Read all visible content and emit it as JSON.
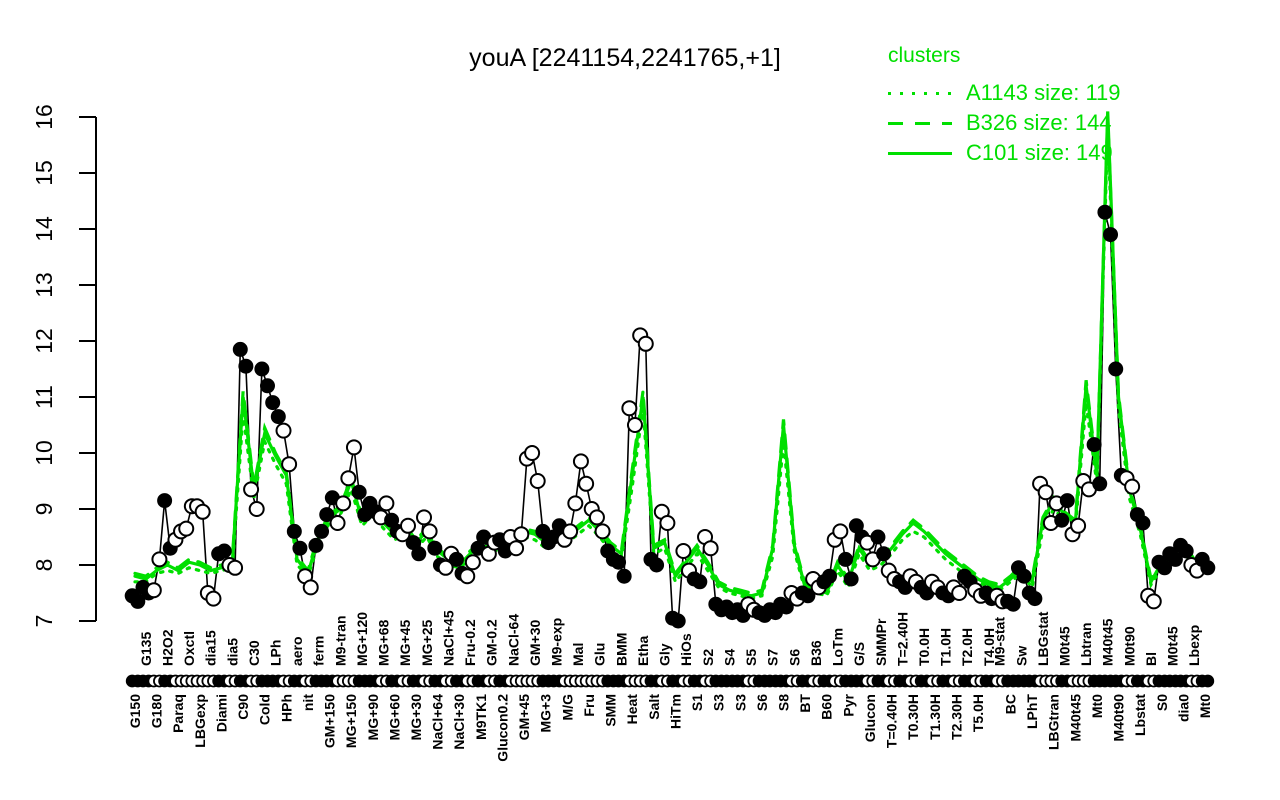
{
  "chart_data": {
    "type": "line",
    "title": "youA [2241154,2241765,+1]",
    "xlabel": "",
    "ylabel": "",
    "ylim": [
      7,
      16
    ],
    "y_ticks": [
      7,
      8,
      9,
      10,
      11,
      12,
      13,
      14,
      15,
      16
    ],
    "grid": false,
    "color": "#00DF00",
    "gene_color": "#000000",
    "legend": {
      "title": "clusters",
      "position": "top-right"
    },
    "conditions": [
      [
        "G150",
        "b",
        "f"
      ],
      [
        "G135",
        "t",
        "f"
      ],
      [
        "G180",
        "b",
        "o"
      ],
      [
        "H2O2",
        "t",
        "f"
      ],
      [
        "Paraq",
        "b",
        "o"
      ],
      [
        "Oxctl",
        "t",
        "o"
      ],
      [
        "LBGexp",
        "b",
        "o"
      ],
      [
        "dia15",
        "t",
        "o"
      ],
      [
        "Diami",
        "b",
        "f"
      ],
      [
        "dia5",
        "t",
        "o"
      ],
      [
        "C90",
        "b",
        "f"
      ],
      [
        "C30",
        "t",
        "o"
      ],
      [
        "Cold",
        "b",
        "f"
      ],
      [
        "LPh",
        "t",
        "f"
      ],
      [
        "HPh",
        "b",
        "o"
      ],
      [
        "aero",
        "t",
        "f"
      ],
      [
        "nit",
        "b",
        "o"
      ],
      [
        "ferm",
        "t",
        "f"
      ],
      [
        "GM+150",
        "b",
        "f"
      ],
      [
        "M9-tran",
        "t",
        "o"
      ],
      [
        "MG+150",
        "b",
        "o"
      ],
      [
        "MG+120",
        "t",
        "f"
      ],
      [
        "MG+90",
        "b",
        "f"
      ],
      [
        "MG+68",
        "t",
        "o"
      ],
      [
        "MG+60",
        "b",
        "f"
      ],
      [
        "MG+45",
        "t",
        "o"
      ],
      [
        "MG+30",
        "b",
        "f"
      ],
      [
        "MG+25",
        "t",
        "o"
      ],
      [
        "NaCl+64",
        "b",
        "f"
      ],
      [
        "NaCl+45",
        "t",
        "o"
      ],
      [
        "NaCl+30",
        "b",
        "f"
      ],
      [
        "Fru-0.2",
        "t",
        "o"
      ],
      [
        "M9TK1",
        "b",
        "f"
      ],
      [
        "GM-0.2",
        "t",
        "o"
      ],
      [
        "Glucon0.2",
        "b",
        "f"
      ],
      [
        "NaCl-64",
        "t",
        "o"
      ],
      [
        "GM+45",
        "b",
        "o"
      ],
      [
        "GM+30",
        "t",
        "o"
      ],
      [
        "MG+3",
        "b",
        "f"
      ],
      [
        "M9-exp",
        "t",
        "f"
      ],
      [
        "M/G",
        "b",
        "o"
      ],
      [
        "Mal",
        "t",
        "o"
      ],
      [
        "Fru",
        "b",
        "o"
      ],
      [
        "Glu",
        "t",
        "o"
      ],
      [
        "SMM",
        "b",
        "f"
      ],
      [
        "BMM",
        "t",
        "f"
      ],
      [
        "Heat",
        "b",
        "o"
      ],
      [
        "Etha",
        "t",
        "o"
      ],
      [
        "Salt",
        "b",
        "f"
      ],
      [
        "Gly",
        "t",
        "o"
      ],
      [
        "HiTm",
        "b",
        "f"
      ],
      [
        "HiOs",
        "t",
        "o"
      ],
      [
        "S1",
        "b",
        "f"
      ],
      [
        "S2",
        "t",
        "o"
      ],
      [
        "S3",
        "b",
        "f"
      ],
      [
        "S4",
        "t",
        "f"
      ],
      [
        "S3",
        "b",
        "f"
      ],
      [
        "S5",
        "t",
        "o"
      ],
      [
        "S6",
        "b",
        "f"
      ],
      [
        "S7",
        "t",
        "f"
      ],
      [
        "S8",
        "b",
        "f"
      ],
      [
        "S6",
        "t",
        "o"
      ],
      [
        "BT",
        "b",
        "f"
      ],
      [
        "B36",
        "t",
        "o"
      ],
      [
        "B60",
        "b",
        "f"
      ],
      [
        "LoTm",
        "t",
        "o"
      ],
      [
        "Pyr",
        "b",
        "f"
      ],
      [
        "G/S",
        "t",
        "f"
      ],
      [
        "Glucon",
        "b",
        "o"
      ],
      [
        "SMMPr",
        "t",
        "f"
      ],
      [
        "T=0.40H",
        "b",
        "o"
      ],
      [
        "T=2.40H",
        "t",
        "f"
      ],
      [
        "T0.30H",
        "b",
        "o"
      ],
      [
        "T0.0H",
        "t",
        "f"
      ],
      [
        "T1.30H",
        "b",
        "o"
      ],
      [
        "T1.0H",
        "t",
        "f"
      ],
      [
        "T2.30H",
        "b",
        "o"
      ],
      [
        "T2.0H",
        "t",
        "f"
      ],
      [
        "T5.0H",
        "b",
        "o"
      ],
      [
        "T4.0H",
        "t",
        "f"
      ],
      [
        "M9-stat",
        "t",
        "o"
      ],
      [
        "BC",
        "b",
        "f"
      ],
      [
        "Sw",
        "t",
        "f"
      ],
      [
        "LPhT",
        "b",
        "f"
      ],
      [
        "LBGstat",
        "t",
        "o"
      ],
      [
        "LBGtran",
        "b",
        "o"
      ],
      [
        "M0t45",
        "t",
        "f"
      ],
      [
        "M40t45",
        "b",
        "o"
      ],
      [
        "Lbtran",
        "t",
        "o"
      ],
      [
        "Mt0",
        "b",
        "f"
      ],
      [
        "M40t45",
        "t",
        "f"
      ],
      [
        "M40t90",
        "b",
        "f"
      ],
      [
        "M0t90",
        "t",
        "o"
      ],
      [
        "Lbstat",
        "b",
        "f"
      ],
      [
        "Bl",
        "t",
        "o"
      ],
      [
        "S0",
        "b",
        "f"
      ],
      [
        "M0t45",
        "t",
        "f"
      ],
      [
        "dia0",
        "b",
        "f"
      ],
      [
        "Lbexp",
        "t",
        "o"
      ],
      [
        "Mt0",
        "b",
        "f"
      ]
    ],
    "gene_values": [
      [
        7.45,
        7.35
      ],
      [
        7.6,
        7.5
      ],
      [
        7.55,
        8.1
      ],
      [
        9.15,
        8.3
      ],
      [
        8.45,
        8.6
      ],
      [
        8.65,
        9.05
      ],
      [
        9.05,
        8.95
      ],
      [
        7.5,
        7.4
      ],
      [
        8.2,
        8.25
      ],
      [
        8.0,
        7.95
      ],
      [
        11.85,
        11.55
      ],
      [
        9.35,
        9.0
      ],
      [
        11.5,
        11.2
      ],
      [
        10.9,
        10.65
      ],
      [
        10.4,
        9.8
      ],
      [
        8.6,
        8.3
      ],
      [
        7.8,
        7.6
      ],
      [
        8.35,
        8.6
      ],
      [
        8.9,
        9.2
      ],
      [
        8.75,
        9.1
      ],
      [
        9.55,
        10.1
      ],
      [
        9.3,
        8.9
      ],
      [
        9.1,
        8.95
      ],
      [
        8.85,
        9.1
      ],
      [
        8.8,
        8.6
      ],
      [
        8.55,
        8.7
      ],
      [
        8.4,
        8.2
      ],
      [
        8.85,
        8.6
      ],
      [
        8.3,
        8.0
      ],
      [
        7.95,
        8.2
      ],
      [
        8.1,
        7.85
      ],
      [
        7.8,
        8.05
      ],
      [
        8.3,
        8.5
      ],
      [
        8.2,
        8.4
      ],
      [
        8.45,
        8.25
      ],
      [
        8.5,
        8.3
      ],
      [
        8.55,
        9.9
      ],
      [
        10.0,
        9.5
      ],
      [
        8.6,
        8.4
      ],
      [
        8.5,
        8.7
      ],
      [
        8.45,
        8.6
      ],
      [
        9.1,
        9.85
      ],
      [
        9.45,
        9.0
      ],
      [
        8.85,
        8.6
      ],
      [
        8.25,
        8.1
      ],
      [
        8.05,
        7.8
      ],
      [
        10.8,
        10.5
      ],
      [
        12.1,
        11.95
      ],
      [
        8.1,
        8.0
      ],
      [
        8.95,
        8.75
      ],
      [
        7.05,
        7.0
      ],
      [
        8.25,
        7.9
      ],
      [
        7.75,
        7.7
      ],
      [
        8.5,
        8.3
      ],
      [
        7.3,
        7.2
      ],
      [
        7.25,
        7.15
      ],
      [
        7.2,
        7.1
      ],
      [
        7.3,
        7.2
      ],
      [
        7.15,
        7.1
      ],
      [
        7.2,
        7.15
      ],
      [
        7.3,
        7.25
      ],
      [
        7.5,
        7.4
      ],
      [
        7.5,
        7.45
      ],
      [
        7.75,
        7.6
      ],
      [
        7.7,
        7.8
      ],
      [
        8.45,
        8.6
      ],
      [
        8.1,
        7.75
      ],
      [
        8.7,
        8.5
      ],
      [
        8.4,
        8.1
      ],
      [
        8.5,
        8.2
      ],
      [
        7.9,
        7.75
      ],
      [
        7.7,
        7.6
      ],
      [
        7.8,
        7.7
      ],
      [
        7.6,
        7.5
      ],
      [
        7.7,
        7.6
      ],
      [
        7.5,
        7.45
      ],
      [
        7.6,
        7.5
      ],
      [
        7.8,
        7.7
      ],
      [
        7.55,
        7.45
      ],
      [
        7.5,
        7.4
      ],
      [
        7.45,
        7.35
      ],
      [
        7.35,
        7.3
      ],
      [
        7.95,
        7.8
      ],
      [
        7.5,
        7.4
      ],
      [
        9.45,
        9.3
      ],
      [
        8.75,
        9.1
      ],
      [
        8.8,
        9.15
      ],
      [
        8.55,
        8.7
      ],
      [
        9.5,
        9.35
      ],
      [
        10.15,
        9.45
      ],
      [
        14.3,
        13.9
      ],
      [
        11.5,
        9.6
      ],
      [
        9.55,
        9.4
      ],
      [
        8.9,
        8.75
      ],
      [
        7.45,
        7.35
      ],
      [
        8.05,
        7.95
      ],
      [
        8.2,
        8.1
      ],
      [
        8.35,
        8.25
      ],
      [
        8.0,
        7.9
      ],
      [
        8.1,
        7.95
      ]
    ],
    "clusters": [
      {
        "name": "A1143 size: 119",
        "style": "dotted",
        "values": [
          7.7,
          7.7,
          7.85,
          7.9,
          7.85,
          7.95,
          7.9,
          7.85,
          7.9,
          7.95,
          10.7,
          9.2,
          10.2,
          9.8,
          9.45,
          8.0,
          7.8,
          8.4,
          8.75,
          8.9,
          9.35,
          8.7,
          8.9,
          8.65,
          8.45,
          8.55,
          8.3,
          8.5,
          8.15,
          8.0,
          7.95,
          8.1,
          8.25,
          8.2,
          8.35,
          8.3,
          8.5,
          8.45,
          8.3,
          8.45,
          8.4,
          8.55,
          8.7,
          8.5,
          8.25,
          8.1,
          9.4,
          10.8,
          8.2,
          8.3,
          7.7,
          7.95,
          8.2,
          7.9,
          7.6,
          7.5,
          7.45,
          7.4,
          7.45,
          8.15,
          10.2,
          8.25,
          7.55,
          7.5,
          7.45,
          7.9,
          7.6,
          8.2,
          7.9,
          8.0,
          8.2,
          8.45,
          8.6,
          8.5,
          8.3,
          8.1,
          7.95,
          7.8,
          7.7,
          7.6,
          7.55,
          7.7,
          7.85,
          7.6,
          8.65,
          9.0,
          8.8,
          8.65,
          10.9,
          9.45,
          15.8,
          10.8,
          9.2,
          8.55,
          7.65,
          7.95,
          8.1,
          8.25,
          7.95,
          7.85
        ]
      },
      {
        "name": "B326 size: 144",
        "style": "dashed",
        "values": [
          7.85,
          7.8,
          7.95,
          8.05,
          7.95,
          8.1,
          8.05,
          7.95,
          8.0,
          8.1,
          11.1,
          9.4,
          10.45,
          10.0,
          9.65,
          8.15,
          7.9,
          8.55,
          8.9,
          9.05,
          9.55,
          8.85,
          9.05,
          8.8,
          8.6,
          8.7,
          8.45,
          8.65,
          8.3,
          8.15,
          8.05,
          8.25,
          8.4,
          8.35,
          8.5,
          8.45,
          8.65,
          8.6,
          8.45,
          8.6,
          8.55,
          8.7,
          8.85,
          8.65,
          8.4,
          8.25,
          9.7,
          11.1,
          8.35,
          8.45,
          7.85,
          8.1,
          8.35,
          8.05,
          7.7,
          7.6,
          7.55,
          7.5,
          7.55,
          8.35,
          10.6,
          8.4,
          7.65,
          7.6,
          7.55,
          8.05,
          7.75,
          8.35,
          8.05,
          8.15,
          8.35,
          8.6,
          8.8,
          8.65,
          8.45,
          8.25,
          8.1,
          7.95,
          7.8,
          7.7,
          7.65,
          7.8,
          8.0,
          7.75,
          8.85,
          9.2,
          8.95,
          8.8,
          11.3,
          9.65,
          16.0,
          11.05,
          9.4,
          8.7,
          7.75,
          8.1,
          8.25,
          8.4,
          8.1,
          8.0
        ]
      },
      {
        "name": "C101 size: 149",
        "style": "solid",
        "values": [
          7.8,
          7.75,
          7.9,
          8.0,
          7.9,
          8.05,
          8.0,
          7.9,
          7.95,
          8.05,
          11.0,
          9.35,
          10.35,
          9.95,
          9.6,
          8.1,
          7.85,
          8.5,
          8.85,
          9.0,
          9.5,
          8.8,
          9.0,
          8.75,
          8.55,
          8.65,
          8.4,
          8.6,
          8.25,
          8.1,
          8.0,
          8.2,
          8.35,
          8.3,
          8.45,
          8.4,
          8.6,
          8.55,
          8.4,
          8.55,
          8.5,
          8.65,
          8.8,
          8.6,
          8.35,
          8.2,
          9.6,
          11.0,
          8.3,
          8.4,
          7.8,
          8.05,
          8.3,
          8.0,
          7.65,
          7.55,
          7.5,
          7.45,
          7.5,
          8.3,
          10.5,
          8.35,
          7.6,
          7.55,
          7.5,
          8.0,
          7.7,
          8.3,
          8.0,
          8.1,
          8.3,
          8.55,
          8.75,
          8.6,
          8.4,
          8.2,
          8.05,
          7.9,
          7.75,
          7.65,
          7.6,
          7.75,
          7.95,
          7.7,
          8.8,
          9.15,
          8.9,
          8.75,
          11.2,
          9.6,
          16.1,
          11.0,
          9.35,
          8.65,
          7.7,
          8.05,
          8.2,
          8.35,
          8.05,
          7.95
        ]
      }
    ]
  }
}
